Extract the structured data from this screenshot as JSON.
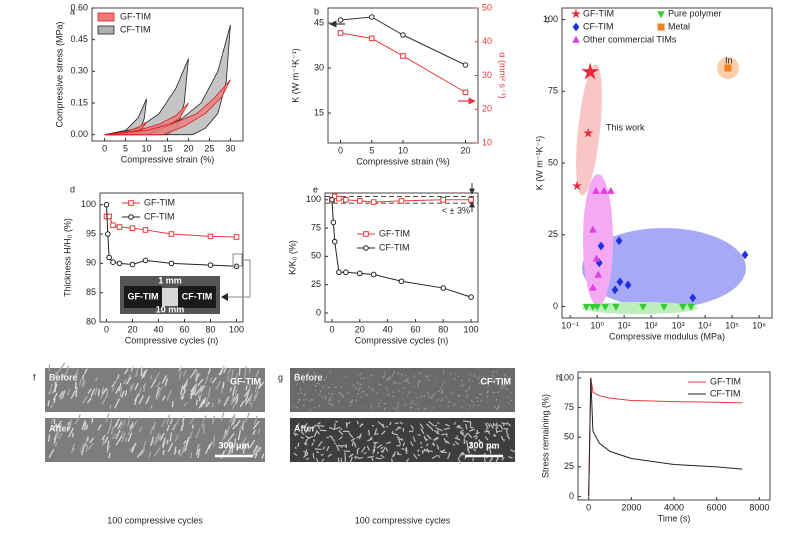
{
  "chart_data": [
    {
      "type": "loop",
      "label": "a",
      "xlabel": "Compressive strain (%)",
      "ylabel": "Compressive stress (MPa)",
      "xlim": [
        -3,
        33
      ],
      "ylim": [
        -0.03,
        0.6
      ],
      "xticks": [
        0,
        5,
        10,
        15,
        20,
        25,
        30
      ],
      "yticks": [
        {
          "value": 0,
          "label": "0.00"
        },
        {
          "value": 0.15,
          "label": "0.15"
        },
        {
          "value": 0.3,
          "label": "0.30"
        },
        {
          "value": 0.45,
          "label": "0.45"
        },
        {
          "value": 0.6,
          "label": "0.60"
        }
      ],
      "legend": "upper left",
      "series": [
        {
          "name": "GF-TIM",
          "color": "#f07878",
          "edgecolor": "#d81e1e",
          "loops": [
            {
              "x": [
                0,
                5,
                8,
                10,
                9,
                7,
                5
              ],
              "values": [
                0,
                0.015,
                0.035,
                0.06,
                0.03,
                0.01,
                0
              ]
            },
            {
              "x": [
                0,
                8,
                13,
                17,
                20,
                18,
                15,
                10
              ],
              "values": [
                0,
                0.02,
                0.05,
                0.09,
                0.15,
                0.08,
                0.04,
                0
              ]
            },
            {
              "x": [
                0,
                10,
                16,
                22,
                26,
                30,
                28,
                24,
                19,
                14
              ],
              "values": [
                0,
                0.02,
                0.05,
                0.1,
                0.17,
                0.26,
                0.18,
                0.1,
                0.04,
                0
              ]
            }
          ]
        },
        {
          "name": "CF-TIM",
          "color": "#b0b0b0",
          "edgecolor": "#222222",
          "loops": [
            {
              "x": [
                0,
                5,
                8,
                10,
                9.5,
                8.5,
                7
              ],
              "values": [
                0,
                0.02,
                0.08,
                0.17,
                0.08,
                0.02,
                0
              ]
            },
            {
              "x": [
                0,
                8,
                13,
                17,
                20,
                19,
                17.5,
                15
              ],
              "values": [
                0,
                0.03,
                0.1,
                0.22,
                0.36,
                0.15,
                0.04,
                0
              ]
            },
            {
              "x": [
                0,
                10,
                18,
                23,
                27,
                30,
                29,
                27,
                24,
                21
              ],
              "values": [
                0,
                0.02,
                0.07,
                0.15,
                0.3,
                0.52,
                0.25,
                0.1,
                0.03,
                0
              ]
            }
          ]
        }
      ]
    },
    {
      "type": "line",
      "label": "b",
      "xlabel": "Compressive strain (%)",
      "ylabel": "K (W m⁻¹K⁻¹)",
      "y2label": "α (mm² s⁻¹)",
      "xlim": [
        -2,
        22
      ],
      "xticks": [
        0,
        5,
        10,
        20
      ],
      "ylim": [
        5,
        50
      ],
      "yticks": [
        15,
        30,
        45
      ],
      "y2lim": [
        10,
        50
      ],
      "y2ticks": [
        10,
        20,
        30,
        40,
        50
      ],
      "series": [
        {
          "color": "#333333",
          "marker": "circle",
          "x": [
            0,
            5,
            10,
            20
          ],
          "values": [
            46,
            47,
            41,
            31
          ]
        },
        {
          "color": "#e8393a",
          "marker": "square",
          "axis": "y2",
          "x": [
            0,
            5,
            10,
            20
          ],
          "values": [
            42.6,
            41,
            35.8,
            25
          ]
        }
      ]
    },
    {
      "type": "scatter",
      "label": "c",
      "xlabel": "Compressive modulus (MPa)",
      "ylabel": "K (W m⁻¹K⁻¹)",
      "xscale": "log",
      "xlim": [
        0.05,
        3000000
      ],
      "ylim": [
        -4,
        104
      ],
      "xticks": [
        {
          "value": 0.1,
          "label": "10⁻¹"
        },
        {
          "value": 1,
          "label": "10⁰"
        },
        {
          "value": 10,
          "label": "10¹"
        },
        {
          "value": 100,
          "label": "10²"
        },
        {
          "value": 1000,
          "label": "10³"
        },
        {
          "value": 10000,
          "label": "10⁴"
        },
        {
          "value": 100000,
          "label": "10⁵"
        },
        {
          "value": 1000000,
          "label": "10⁶"
        }
      ],
      "yticks": [
        0,
        25,
        50,
        75,
        100
      ],
      "annotations": [
        "This work",
        "In"
      ],
      "series": [
        {
          "name": "GF-TIM",
          "color": "#e8283a",
          "marker": "star",
          "x": [
            0.55,
            0.47,
            0.18
          ],
          "values": [
            81.7,
            60.4,
            42
          ]
        },
        {
          "name": "CF-TIM",
          "color": "#2030e0",
          "marker": "diamond",
          "x": [
            1.4,
            1.2,
            6.5,
            4.6,
            7,
            14,
            3500,
            300000
          ],
          "values": [
            21.1,
            15.2,
            22.9,
            5.8,
            8.6,
            7.5,
            3,
            18
          ]
        },
        {
          "name": "Other commercial TIMs",
          "color": "#e040e0",
          "marker": "triangle-up",
          "x": [
            0.9,
            1.8,
            3.2,
            0.7,
            0.95,
            1.1,
            0.7
          ],
          "values": [
            40.2,
            40.2,
            40.2,
            26.7,
            16.6,
            11,
            6.5
          ]
        },
        {
          "name": "Pure polymer",
          "color": "#30cc30",
          "marker": "triangle-down",
          "x": [
            0.4,
            0.7,
            1,
            2,
            5,
            50,
            300,
            1500,
            3000
          ],
          "values": [
            0,
            0,
            0,
            0,
            0,
            0,
            0,
            0,
            0
          ]
        },
        {
          "name": "Metal",
          "color": "#f08020",
          "marker": "square",
          "x": [
            70000
          ],
          "values": [
            83.1
          ]
        }
      ]
    },
    {
      "type": "line",
      "label": "d",
      "xlabel": "Compressive cycles (n)",
      "ylabel": "Thickness H/H₀ (%)",
      "xlim": [
        -5,
        105
      ],
      "ylim": [
        80,
        102
      ],
      "xticks": [
        0,
        20,
        40,
        60,
        80,
        100
      ],
      "yticks": [
        80,
        85,
        90,
        95,
        100
      ],
      "legend": "upper right",
      "inset": {
        "top": "1 mm",
        "left": "GF-TIM",
        "right": "CF-TIM",
        "bottom": "10 mm"
      },
      "series": [
        {
          "name": "GF-TIM",
          "color": "#e8393a",
          "marker": "square",
          "x": [
            0,
            2,
            5,
            10,
            20,
            30,
            50,
            80,
            100
          ],
          "values": [
            98,
            98,
            96.5,
            96.2,
            96,
            95.7,
            95,
            94.6,
            94.5
          ]
        },
        {
          "name": "CF-TIM",
          "color": "#222222",
          "marker": "circle",
          "x": [
            0,
            1,
            2,
            5,
            10,
            20,
            30,
            50,
            80,
            100
          ],
          "values": [
            100,
            95,
            91,
            90.2,
            90,
            89.8,
            90.5,
            90,
            89.7,
            89.5
          ]
        }
      ]
    },
    {
      "type": "line",
      "label": "e",
      "xlabel": "Compressive cycles (n)",
      "ylabel": "K/K₀ (%)",
      "xlim": [
        -5,
        105
      ],
      "ylim": [
        -8,
        106
      ],
      "xticks": [
        0,
        20,
        40,
        60,
        80,
        100
      ],
      "yticks": [
        0,
        25,
        50,
        75,
        100
      ],
      "legend": "center right",
      "hlines": [
        103,
        97
      ],
      "annotations": [
        "< ± 3%"
      ],
      "series": [
        {
          "name": "GF-TIM",
          "color": "#e8393a",
          "marker": "square",
          "x": [
            0,
            2,
            5,
            10,
            20,
            30,
            50,
            80,
            100
          ],
          "values": [
            100,
            103,
            101,
            100,
            99,
            98,
            99,
            100,
            100
          ]
        },
        {
          "name": "CF-TIM",
          "color": "#222222",
          "marker": "circle",
          "x": [
            0,
            1,
            2,
            5,
            10,
            20,
            30,
            50,
            80,
            100
          ],
          "values": [
            100,
            80,
            63,
            36,
            36,
            35,
            34,
            28,
            22,
            14
          ]
        }
      ]
    },
    {
      "type": "image",
      "label": "f",
      "top_label": "Before",
      "sample": "GF-TIM",
      "bottom_label": "After",
      "scale_bar": "300 μm",
      "caption": "100 compressive cycles",
      "texture": "fiber"
    },
    {
      "type": "image",
      "label": "g",
      "top_label": "Before",
      "sample": "CF-TIM",
      "bottom_label": "After",
      "scale_bar": "300 μm",
      "caption": "100 compressive cycles",
      "texture": "foam"
    },
    {
      "type": "line",
      "label": "h",
      "xlabel": "Time (s)",
      "ylabel": "Stress remaining (%)",
      "xlim": [
        -500,
        8500
      ],
      "ylim": [
        -3,
        105
      ],
      "xticks": [
        0,
        2000,
        4000,
        6000,
        8000
      ],
      "yticks": [
        0,
        25,
        50,
        75,
        100
      ],
      "legend": "upper right",
      "series": [
        {
          "name": "GF-TIM",
          "color": "#e8393a",
          "x": [
            0,
            100,
            200,
            500,
            1000,
            2000,
            4000,
            6000,
            7200
          ],
          "values": [
            0,
            100,
            88,
            85,
            83,
            81,
            80,
            79.5,
            79
          ]
        },
        {
          "name": "CF-TIM",
          "color": "#222222",
          "x": [
            0,
            100,
            200,
            500,
            1000,
            2000,
            4000,
            6000,
            7200
          ],
          "values": [
            0,
            100,
            55,
            45,
            38,
            32,
            27,
            25,
            23
          ]
        }
      ]
    }
  ]
}
